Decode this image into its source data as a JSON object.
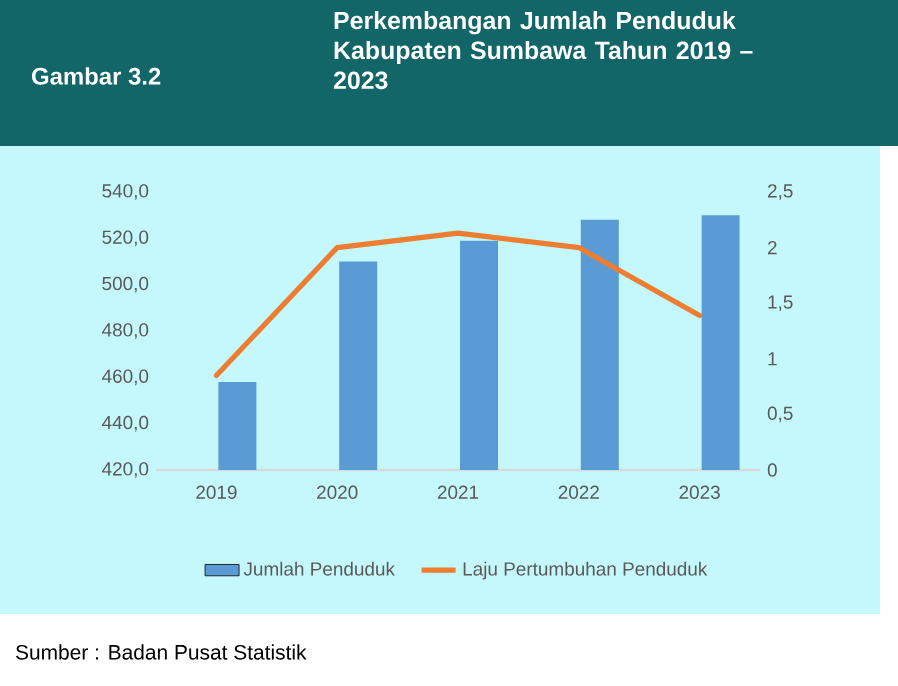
{
  "chart_data": {
    "type": "bar",
    "title": "Perkembangan Jumlah Penduduk Kabupaten Sumbawa Tahun 2019 – 2023",
    "categories": [
      "2019",
      "2020",
      "2021",
      "2022",
      "2023"
    ],
    "series": [
      {
        "name": "Jumlah Penduduk",
        "color": "#5b9bd5",
        "values": [
          458,
          510,
          519,
          528,
          530
        ]
      },
      {
        "name": "Laju Pertumbuhan Penduduk",
        "type": "line",
        "axis": "y2",
        "color": "#ed7d31",
        "values": [
          0.85,
          2.0,
          2.13,
          2.0,
          1.39
        ]
      }
    ],
    "ylim": [
      420,
      540
    ],
    "yticks": [
      {
        "value": 420,
        "label": "420,0"
      },
      {
        "value": 440,
        "label": "440,0"
      },
      {
        "value": 460,
        "label": "460,0"
      },
      {
        "value": 480,
        "label": "480,0"
      },
      {
        "value": 500,
        "label": "500,0"
      },
      {
        "value": 520,
        "label": "520,0"
      },
      {
        "value": 540,
        "label": "540,0"
      }
    ],
    "y2lim": [
      0,
      2.5
    ],
    "y2ticks": [
      0,
      {
        "value": 0.5,
        "label": "0,5"
      },
      1,
      {
        "value": 1.5,
        "label": "1,5"
      },
      2,
      {
        "value": 2.5,
        "label": "2,5"
      }
    ],
    "legend": "bottom",
    "annotations": [
      "Gambar 3.2",
      "Sumber : Badan Pusat Statistik"
    ]
  }
}
